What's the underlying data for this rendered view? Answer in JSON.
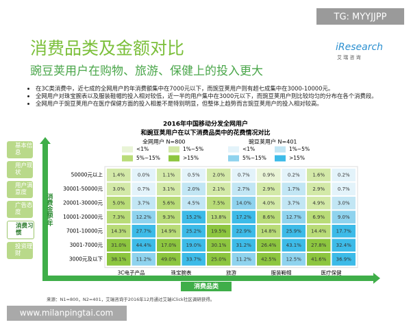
{
  "watermark_top": "TG: MYYJJPP",
  "logo": {
    "name": "iResearch",
    "sub": "艾 瑞 咨 询"
  },
  "header": {
    "title": "消费品类及金额对比",
    "subtitle": "豌豆荚用户在购物、旅游、保健上的投入更大"
  },
  "bullets": [
    "在3C类消费中，近七成的全网用户的年消费额集中在7000元以下，而豌豆荚用户则有超七成集中在3000-10000元。",
    "全网用户对珠宝腕表以及服装鞋帽的投入相对较低，近一半的用户集中在3000元以下，而豌豆荚用户则比较均匀的分布在各个消费段。",
    "全网用户于豌豆荚用户在医疗保健方面的投入相差不是特别明显，但整体上趋势而言豌豆荚用户的投入相对较高。"
  ],
  "nav": [
    "基本信息",
    "用户现状",
    "用户满意度",
    "广告态度",
    "消费习惯",
    "投资理财"
  ],
  "nav_active": 4,
  "chart_data": {
    "type": "heatmap",
    "title": [
      "2016年中国移动分发全网用户",
      "和豌豆荚用户在以下消费品类中的花费情况对比"
    ],
    "x_label": "消费品类",
    "y_label": "消费金额/年",
    "categories": [
      "3C电子产品",
      "珠宝腕表",
      "旅游",
      "服装鞋帽",
      "医疗保健"
    ],
    "rows": [
      "50000元以上",
      "30001-50000元",
      "20001-30000元",
      "10001-20000元",
      "7001-10000元",
      "3001-7000元",
      "3000元及以下"
    ],
    "legend": [
      {
        "value": 1,
        "label": "<1%"
      },
      {
        "value": 5,
        "label": "1%~5%"
      },
      {
        "value": 15,
        "label": "5%~15%"
      },
      {
        "value": 15,
        "label": ">15%"
      }
    ],
    "series": [
      {
        "name": "全网用户 N=800",
        "colors": [
          "#e9f4d6",
          "#d3e9a8",
          "#b9dc78",
          "#8dc63f"
        ],
        "values": [
          [
            1.4,
            1.1,
            2.0,
            0.9,
            1.6
          ],
          [
            3.0,
            3.1,
            2.1,
            2.9,
            2.9
          ],
          [
            5.0,
            5.6,
            7.5,
            4.0,
            4.9
          ],
          [
            7.3,
            9.3,
            13.8,
            8.6,
            6.9
          ],
          [
            14.3,
            14.9,
            19.5,
            14.8,
            14.4
          ],
          [
            31.0,
            17.0,
            30.1,
            26.4,
            27.8
          ],
          [
            38.1,
            49.0,
            25.0,
            42.5,
            41.6
          ]
        ],
        "value_labels": [
          [
            "1.4%",
            "1.1%",
            "2.0%",
            "0.9%",
            "1.6%"
          ],
          [
            "3.0%",
            "3.1%",
            "2.1%",
            "2.9%",
            "2.9%"
          ],
          [
            "5.0%",
            "5.6%",
            "7.5%",
            "4.0%",
            "4.9%"
          ],
          [
            "7.3%",
            "9.3%",
            "13.8%",
            "8.6%",
            "6.9%"
          ],
          [
            "14.3%",
            "14.9%",
            "19.5%",
            "14.8%",
            "14.4%"
          ],
          [
            "31.0%",
            "17.0%",
            "30.1%",
            "26.4%",
            "27.8%"
          ],
          [
            "38.1%",
            "49.0%",
            "25.0%",
            "42.5%",
            "41.6%"
          ]
        ]
      },
      {
        "name": "豌豆荚用户 N=401",
        "colors": [
          "#e3f3fa",
          "#c2e6f4",
          "#8fd3ee",
          "#3dbbe8"
        ],
        "values": [
          [
            0.0,
            0.5,
            0.7,
            0.2,
            0.2
          ],
          [
            0.7,
            2.0,
            2.7,
            1.7,
            0.7
          ],
          [
            3.7,
            4.5,
            14.0,
            3.7,
            3.0
          ],
          [
            12.2,
            15.2,
            17.2,
            12.7,
            9.0
          ],
          [
            27.7,
            25.2,
            22.9,
            25.9,
            17.7
          ],
          [
            44.4,
            19.0,
            31.2,
            43.1,
            32.4
          ],
          [
            11.2,
            33.7,
            11.2,
            12.5,
            36.9
          ]
        ],
        "value_labels": [
          [
            "0.0%",
            "0.5%",
            "0.7%",
            "0.2%",
            "0.2%"
          ],
          [
            "0.7%",
            "2.0%",
            "2.7%",
            "1.7%",
            "0.7%"
          ],
          [
            "3.7%",
            "4.5%",
            "14.0%",
            "3.7%",
            "3.0%"
          ],
          [
            "12.2%",
            "15.2%",
            "17.2%",
            "12.7%",
            "9.0%"
          ],
          [
            "27.7%",
            "25.2%",
            "22.9%",
            "25.9%",
            "17.7%"
          ],
          [
            "44.4%",
            "19.0%",
            "31.2%",
            "43.1%",
            "32.4%"
          ],
          [
            "11.2%",
            "33.7%",
            "11.2%",
            "12.5%",
            "36.9%"
          ]
        ]
      }
    ]
  },
  "source": "来源：N1=800，N2=401，艾瑞咨询于2016年12月通过艾瑞iClick社区调研获得。",
  "watermark_bottom": "www.milanpingtai.com"
}
